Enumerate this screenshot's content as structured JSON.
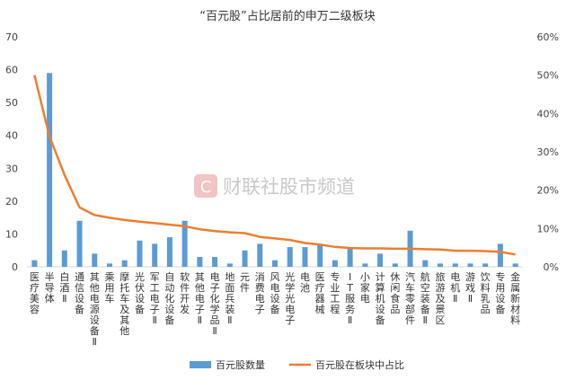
{
  "watermark": "财联社股市频道",
  "colors": {
    "bar": "#5b9bd5",
    "line": "#ed7d31",
    "wm_logo": "#f2c4c4"
  },
  "chart_data": {
    "type": "bar",
    "title": "“百元股”占比居前的申万二级板块",
    "categories": [
      "医疗美容",
      "半导体",
      "白酒Ⅱ",
      "通信设备",
      "其他电源设备Ⅱ",
      "乘用车",
      "摩托车及其他",
      "光伏设备",
      "军工电子Ⅱ",
      "自动化设备",
      "软件开发",
      "其他电子Ⅱ",
      "电子化学品Ⅱ",
      "地面兵装Ⅱ",
      "元件",
      "消费电子",
      "风电设备",
      "光学光电子",
      "电池",
      "医疗器械",
      "专业工程",
      "IT服务Ⅱ",
      "小家电",
      "计算机设备",
      "休闲食品",
      "汽车零部件",
      "航空装备Ⅱ",
      "旅游及景区",
      "电机Ⅱ",
      "游戏Ⅱ",
      "饮料乳品",
      "专用设备",
      "金属新材料"
    ],
    "series": [
      {
        "name": "百元股数量",
        "type": "bar",
        "axis": "left",
        "values": [
          2,
          59,
          5,
          14,
          4,
          1,
          2,
          8,
          7,
          9,
          14,
          3,
          3,
          1,
          5,
          7,
          2,
          6,
          6,
          7,
          2,
          6,
          1,
          4,
          1,
          11,
          2,
          1,
          1,
          1,
          1,
          7,
          1
        ]
      },
      {
        "name": "百元股在板块中占比",
        "type": "line",
        "axis": "right",
        "values": [
          50,
          34,
          24,
          15.5,
          13.5,
          12.8,
          12.2,
          11.8,
          11.4,
          11,
          10.6,
          9.8,
          9.3,
          9,
          8.8,
          7.8,
          7.4,
          7,
          6.2,
          5.8,
          5.2,
          4.9,
          4.8,
          4.8,
          4.7,
          4.7,
          4.6,
          4.5,
          4.2,
          4.2,
          4.1,
          3.9,
          3.2
        ]
      }
    ],
    "y_left": {
      "min": 0,
      "max": 70,
      "ticks": [
        "0",
        "10",
        "20",
        "30",
        "40",
        "50",
        "60",
        "70"
      ]
    },
    "y_right": {
      "min": 0,
      "max": 60,
      "ticks": [
        "0%",
        "10%",
        "20%",
        "30%",
        "40%",
        "50%",
        "60%"
      ]
    },
    "legend": [
      "百元股数量",
      "百元股在板块中占比"
    ],
    "legend_position": "bottom",
    "grid": false
  }
}
